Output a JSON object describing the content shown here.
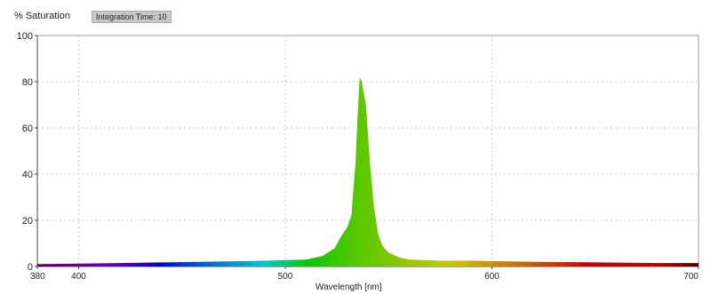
{
  "header": {
    "ylabel": "% Saturation",
    "integration_badge": "Integration Time: 10"
  },
  "chart_data": {
    "type": "area",
    "title": "",
    "xlabel": "Wavelength [nm]",
    "ylabel": "% Saturation",
    "xlim": [
      380,
      700
    ],
    "ylim": [
      0,
      100
    ],
    "xticks": [
      380,
      400,
      500,
      600,
      700
    ],
    "yticks": [
      0,
      20,
      40,
      60,
      80,
      100
    ],
    "grid": true,
    "fill": "wavelength-colored spectrum",
    "series": [
      {
        "points": [
          [
            380,
            1
          ],
          [
            420,
            1.5
          ],
          [
            460,
            2
          ],
          [
            490,
            2.5
          ],
          [
            510,
            3
          ],
          [
            518,
            4.5
          ],
          [
            524,
            8
          ],
          [
            527,
            13
          ],
          [
            530,
            17
          ],
          [
            532,
            22
          ],
          [
            534,
            45
          ],
          [
            535,
            65
          ],
          [
            536,
            82
          ],
          [
            537,
            80
          ],
          [
            539,
            70
          ],
          [
            541,
            45
          ],
          [
            543,
            25
          ],
          [
            545,
            14
          ],
          [
            547,
            9
          ],
          [
            550,
            6
          ],
          [
            555,
            4
          ],
          [
            560,
            3
          ],
          [
            575,
            2.5
          ],
          [
            590,
            2.5
          ],
          [
            620,
            2
          ],
          [
            650,
            1.8
          ],
          [
            680,
            1.5
          ],
          [
            700,
            1.5
          ]
        ]
      }
    ]
  }
}
